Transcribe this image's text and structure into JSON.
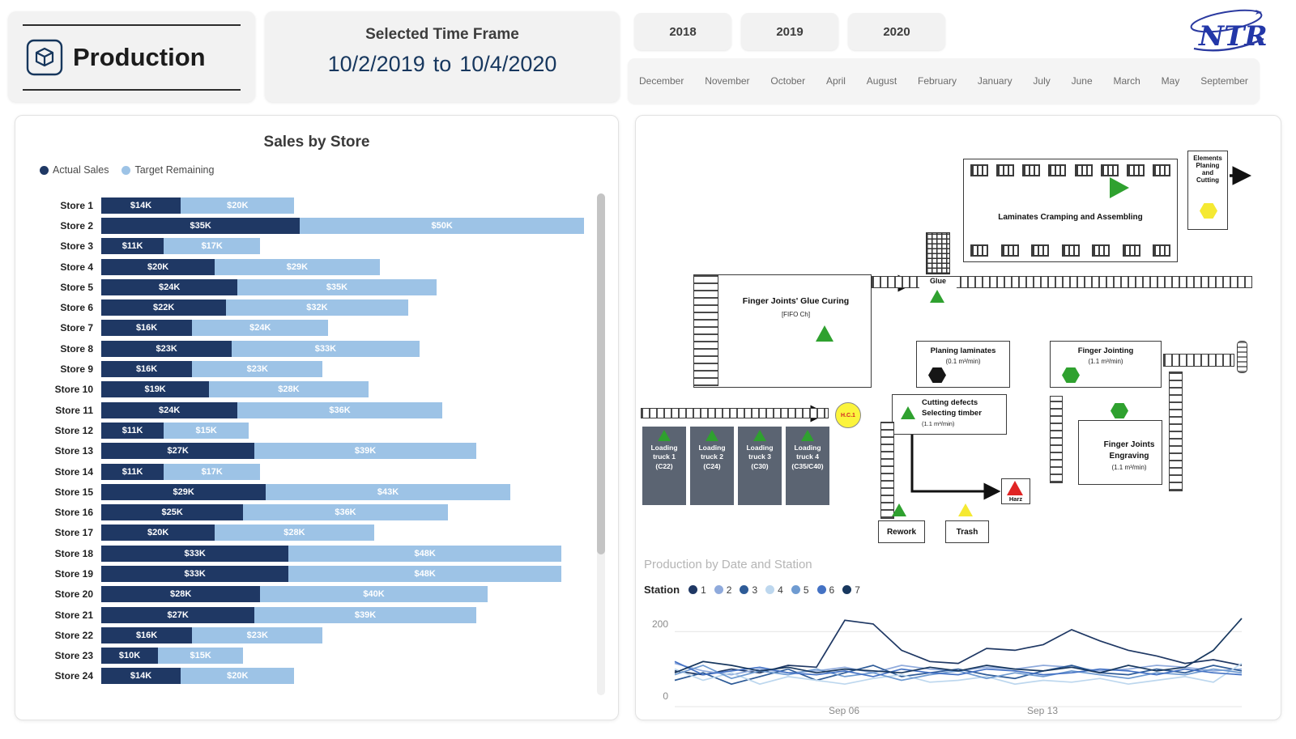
{
  "app": {
    "logo_text": "NTR"
  },
  "production_card": {
    "title": "Production"
  },
  "timeframe": {
    "label": "Selected Time Frame",
    "start": "10/2/2019",
    "separator": "to",
    "end": "10/4/2020"
  },
  "year_slicer": [
    "2018",
    "2019",
    "2020"
  ],
  "month_slicer": [
    "December",
    "November",
    "October",
    "April",
    "August",
    "February",
    "January",
    "July",
    "June",
    "March",
    "May",
    "September"
  ],
  "sales_chart": {
    "title": "Sales by Store"
  },
  "factory": {
    "laminates": "Laminates Cramping and Assembling",
    "elements": "Elements Planing and Cutting",
    "glue": "Glue",
    "fifo_title": "Finger Joints' Glue Curing",
    "fifo_sub": "[FIFO Ch]",
    "planing": "Planing laminates",
    "planing_rate": "(0.1 m³/min)",
    "finger_jointing": "Finger Jointing",
    "finger_jointing_rate": "(1.1 m³/min)",
    "cutting_1": "Cutting defects",
    "cutting_2": "Selecting timber",
    "cutting_rate": "(1.1 m³/min)",
    "hc1": "H.C.1",
    "engraving_1": "Finger Joints",
    "engraving_2": "Engraving",
    "engraving_rate": "(1.1 m³/min)",
    "rework": "Rework",
    "trash": "Trash",
    "harz": "Harz",
    "trucks": [
      {
        "l1": "Loading",
        "l2": "truck 1",
        "l3": "(C22)"
      },
      {
        "l1": "Loading",
        "l2": "truck 2",
        "l3": "(C24)"
      },
      {
        "l1": "Loading",
        "l2": "truck 3",
        "l3": "(C30)"
      },
      {
        "l1": "Loading",
        "l2": "truck 4",
        "l3": "(C35/C40)"
      }
    ]
  },
  "production_chart": {
    "title": "Production by Date and Station",
    "legend_label": "Station",
    "y_top": "200",
    "y_bottom": "0"
  },
  "chart_data": [
    {
      "type": "bar",
      "orientation": "horizontal-stacked",
      "title": "Sales by Store",
      "xmax": 85,
      "unit": "K USD",
      "categories": [
        "Store 1",
        "Store 2",
        "Store 3",
        "Store 4",
        "Store 5",
        "Store 6",
        "Store 7",
        "Store 8",
        "Store 9",
        "Store 10",
        "Store 11",
        "Store 12",
        "Store 13",
        "Store 14",
        "Store 15",
        "Store 16",
        "Store 17",
        "Store 18",
        "Store 19",
        "Store 20",
        "Store 21",
        "Store 22",
        "Store 23",
        "Store 24"
      ],
      "series": [
        {
          "name": "Actual Sales",
          "color": "#1F3864",
          "values": [
            14,
            35,
            11,
            20,
            24,
            22,
            16,
            23,
            16,
            19,
            24,
            11,
            27,
            11,
            29,
            25,
            20,
            33,
            33,
            28,
            27,
            16,
            10,
            14
          ],
          "labels": [
            "$14K",
            "$35K",
            "$11K",
            "$20K",
            "$24K",
            "$22K",
            "$16K",
            "$23K",
            "$16K",
            "$19K",
            "$24K",
            "$11K",
            "$27K",
            "$11K",
            "$29K",
            "$25K",
            "$20K",
            "$33K",
            "$33K",
            "$28K",
            "$27K",
            "$16K",
            "$10K",
            "$14K"
          ]
        },
        {
          "name": "Target Remaining",
          "color": "#9DC3E6",
          "values": [
            20,
            50,
            17,
            29,
            35,
            32,
            24,
            33,
            23,
            28,
            36,
            15,
            39,
            17,
            43,
            36,
            28,
            48,
            48,
            40,
            39,
            23,
            15,
            20
          ],
          "labels": [
            "$20K",
            "$50K",
            "$17K",
            "$29K",
            "$35K",
            "$32K",
            "$24K",
            "$33K",
            "$23K",
            "$28K",
            "$36K",
            "$15K",
            "$39K",
            "$17K",
            "$43K",
            "$36K",
            "$28K",
            "$48K",
            "$48K",
            "$40K",
            "$39K",
            "$23K",
            "$15K",
            "$20K"
          ]
        }
      ]
    },
    {
      "type": "line",
      "title": "Production by Date and Station",
      "legend_label": "Station",
      "legend_position": "top-left",
      "ylim": [
        0,
        250
      ],
      "y_ticks_shown": [
        200,
        0
      ],
      "x_ticks_shown": [
        "Sep 06",
        "Sep 13"
      ],
      "x": [
        "Aug 31",
        "Sep 01",
        "Sep 02",
        "Sep 03",
        "Sep 04",
        "Sep 05",
        "Sep 06",
        "Sep 07",
        "Sep 08",
        "Sep 09",
        "Sep 10",
        "Sep 11",
        "Sep 12",
        "Sep 13",
        "Sep 14",
        "Sep 15",
        "Sep 16",
        "Sep 17",
        "Sep 18",
        "Sep 19",
        "Sep 20"
      ],
      "series": [
        {
          "name": "1",
          "color": "#1F3864",
          "values": [
            95,
            85,
            100,
            90,
            110,
            105,
            230,
            220,
            150,
            120,
            115,
            155,
            150,
            165,
            205,
            175,
            150,
            135,
            115,
            125,
            110
          ]
        },
        {
          "name": "2",
          "color": "#8FAADC",
          "values": [
            115,
            95,
            85,
            100,
            90,
            95,
            105,
            90,
            110,
            100,
            95,
            105,
            100,
            110,
            105,
            95,
            100,
            110,
            105,
            95,
            100
          ]
        },
        {
          "name": "3",
          "color": "#2E5B97",
          "values": [
            70,
            90,
            60,
            80,
            100,
            70,
            90,
            110,
            80,
            90,
            100,
            85,
            75,
            95,
            110,
            90,
            85,
            100,
            90,
            110,
            95
          ]
        },
        {
          "name": "4",
          "color": "#BDD7EE",
          "values": [
            100,
            70,
            90,
            60,
            80,
            70,
            60,
            75,
            85,
            65,
            70,
            80,
            60,
            70,
            65,
            75,
            60,
            70,
            80,
            65,
            115
          ]
        },
        {
          "name": "5",
          "color": "#6F9BD1",
          "values": [
            85,
            110,
            75,
            95,
            85,
            100,
            80,
            90,
            70,
            85,
            95,
            75,
            90,
            80,
            95,
            85,
            75,
            90,
            85,
            100,
            90
          ]
        },
        {
          "name": "6",
          "color": "#4472C4",
          "values": [
            120,
            85,
            95,
            105,
            90,
            85,
            95,
            80,
            100,
            90,
            85,
            100,
            95,
            85,
            90,
            100,
            95,
            85,
            100,
            90,
            85
          ]
        },
        {
          "name": "7",
          "color": "#17375E",
          "values": [
            90,
            120,
            110,
            95,
            105,
            90,
            100,
            95,
            90,
            105,
            95,
            110,
            100,
            95,
            105,
            90,
            110,
            95,
            105,
            150,
            235
          ]
        }
      ]
    }
  ]
}
